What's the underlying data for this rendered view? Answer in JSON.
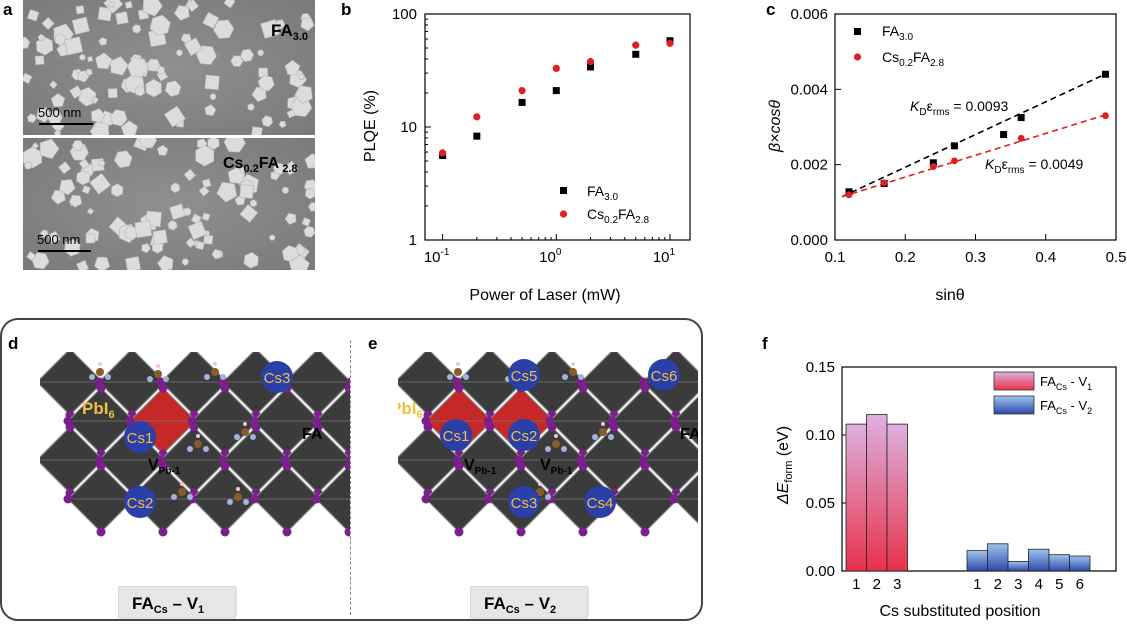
{
  "panels": {
    "a": {
      "letter": "a",
      "top_label": {
        "main": "FA",
        "sub": "3.0"
      },
      "bottom_label": {
        "main1": "Cs",
        "sub1": "0.2",
        "main2": "FA",
        "sub2": " 2.8"
      },
      "scalebar_top": "500 nm",
      "scalebar_bottom": "500 nm"
    },
    "b": {
      "letter": "b"
    },
    "c": {
      "letter": "c"
    },
    "d": {
      "letter": "d",
      "pbi6": "PbI",
      "pbi6_sub": "6",
      "cs_labels": [
        "Cs3",
        "Cs1",
        "Cs2"
      ],
      "fa": "FA",
      "vacancy": {
        "main": "V",
        "sub": "Pb-1"
      },
      "caption": {
        "main1": "FA",
        "sub1": "Cs",
        "dash": " – V",
        "sub2": "1"
      }
    },
    "e": {
      "letter": "e",
      "pbi6": "PbI",
      "pbi6_sub": "6",
      "cs_labels": [
        "Cs5",
        "Cs6",
        "Cs1",
        "Cs2",
        "Cs3",
        "Cs4"
      ],
      "fa": "FA",
      "vacancy": {
        "main": "V",
        "sub": "Pb-1"
      },
      "caption": {
        "main1": "FA",
        "sub1": "Cs",
        "dash": " – V",
        "sub2": "2"
      }
    },
    "f": {
      "letter": "f"
    }
  },
  "chart_data": [
    {
      "panel": "b",
      "type": "scatter",
      "xscale": "log",
      "yscale": "log",
      "xlim": [
        0.07,
        15
      ],
      "ylim": [
        1,
        100
      ],
      "xlabel": "Power of Laser (mW)",
      "ylabel": "PLQE (%)",
      "xticks": [
        {
          "base": "10",
          "exp": "-1"
        },
        {
          "base": "10",
          "exp": "0"
        },
        {
          "base": "10",
          "exp": "1"
        }
      ],
      "yticks": [
        "1",
        "10",
        "100"
      ],
      "legend": "bottom-right",
      "series": [
        {
          "name": "FA",
          "name_sub": "3.0",
          "marker": "square",
          "color": "#000000",
          "x": [
            0.1,
            0.2,
            0.5,
            1,
            2,
            5,
            10
          ],
          "y": [
            5.6,
            8.3,
            16.5,
            21,
            34,
            44,
            58
          ]
        },
        {
          "name": "Cs",
          "name_sub": "0.2",
          "name2": "FA",
          "name2_sub": "2.8",
          "marker": "circle",
          "color": "#e02020",
          "x": [
            0.1,
            0.2,
            0.5,
            1,
            2,
            5,
            10
          ],
          "y": [
            5.9,
            12.3,
            21,
            33,
            38,
            53,
            55
          ]
        }
      ]
    },
    {
      "panel": "c",
      "type": "scatter",
      "xlim": [
        0.1,
        0.5
      ],
      "ylim": [
        0,
        0.006
      ],
      "xlabel": "sinθ",
      "ylabel": "β×cosθ",
      "xticks": [
        "0.1",
        "0.2",
        "0.3",
        "0.4",
        "0.5"
      ],
      "yticks": [
        "0.000",
        "0.002",
        "0.004",
        "0.006"
      ],
      "legend": "top-left",
      "series": [
        {
          "name": "FA",
          "name_sub": "3.0",
          "marker": "square",
          "color": "#000000",
          "x": [
            0.12,
            0.17,
            0.24,
            0.27,
            0.34,
            0.365,
            0.485
          ],
          "y": [
            0.00128,
            0.0015,
            0.00205,
            0.0025,
            0.0028,
            0.00325,
            0.0044
          ],
          "fit": {
            "x": [
              0.11,
              0.49
            ],
            "y": [
              0.00115,
              0.00445
            ],
            "label_main": "K",
            "label_sub": "D",
            "label_eps": "ε",
            "label_eps_sub": "rms",
            "label_val": " = 0.0093"
          }
        },
        {
          "name": "Cs",
          "name_sub": "0.2",
          "name2": "FA",
          "name2_sub": "2.8",
          "marker": "circle",
          "color": "#e02020",
          "x": [
            0.12,
            0.17,
            0.24,
            0.27,
            0.365,
            0.485
          ],
          "y": [
            0.0012,
            0.00152,
            0.00195,
            0.0021,
            0.0027,
            0.0033
          ],
          "fit": {
            "x": [
              0.11,
              0.49
            ],
            "y": [
              0.00115,
              0.00335
            ],
            "label_main": "K",
            "label_sub": "D",
            "label_eps": "ε",
            "label_eps_sub": "rms",
            "label_val": " = 0.0049"
          }
        }
      ]
    },
    {
      "panel": "f",
      "type": "bar",
      "ylim": [
        0,
        0.15
      ],
      "xlabel": "Cs substituted position",
      "ylabel": "ΔE",
      "ylabel_sub": "form",
      "ylabel_unit": " (eV)",
      "yticks": [
        "0.00",
        "0.05",
        "0.10",
        "0.15"
      ],
      "legend": "top-right",
      "series": [
        {
          "name": "FA",
          "name_sub": "Cs",
          "name_rest": " - V",
          "name_rest_sub": "1",
          "color": "#e8324a",
          "color_light": "#ddb0e0",
          "categories": [
            "1",
            "2",
            "3"
          ],
          "values": [
            0.108,
            0.115,
            0.108
          ]
        },
        {
          "name": "FA",
          "name_sub": "Cs",
          "name_rest": " - V",
          "name_rest_sub": "2",
          "color": "#2d4aa8",
          "color_light": "#9fc4ef",
          "categories": [
            "1",
            "2",
            "3",
            "4",
            "5",
            "6"
          ],
          "values": [
            0.015,
            0.02,
            0.007,
            0.016,
            0.012,
            0.011
          ]
        }
      ]
    }
  ]
}
